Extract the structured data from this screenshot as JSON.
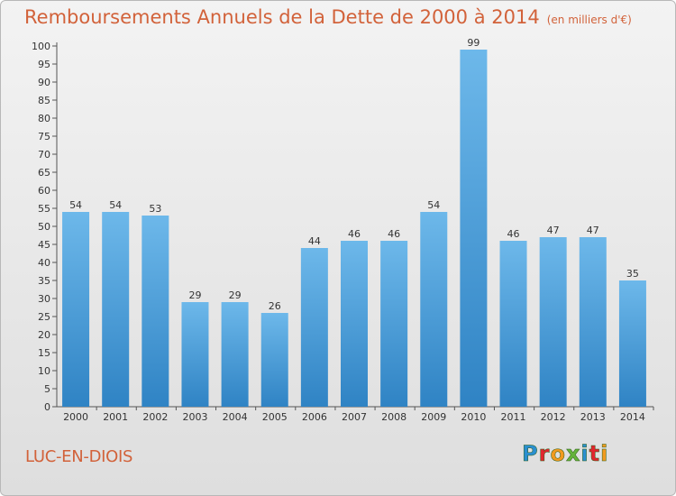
{
  "title": "Remboursements Annuels de la Dette de 2000 à 2014",
  "unit_note": "(en milliers d'€)",
  "commune": "LUC-EN-DIOIS",
  "logo": {
    "letters": [
      "P",
      "r",
      "o",
      "x",
      "i",
      "t",
      "i"
    ],
    "colors": [
      "#2b8fd0",
      "#e2262f",
      "#f29a1f",
      "#65b33b",
      "#2b8fd0",
      "#e2262f",
      "#f29a1f"
    ]
  },
  "colors": {
    "bar_light": "#6db8ea",
    "bar_dark": "#2f83c4",
    "title": "#d2623a"
  },
  "chart_data": {
    "type": "bar",
    "title": "Remboursements Annuels de la Dette de 2000 à 2014",
    "subtitle": "(en milliers d'€)",
    "categories": [
      "2000",
      "2001",
      "2002",
      "2003",
      "2004",
      "2005",
      "2006",
      "2007",
      "2008",
      "2009",
      "2010",
      "2011",
      "2012",
      "2013",
      "2014"
    ],
    "values": [
      54,
      54,
      53,
      29,
      29,
      26,
      44,
      46,
      46,
      54,
      99,
      46,
      47,
      47,
      35
    ],
    "ylim": [
      0,
      100
    ],
    "ytick_step": 5,
    "grid": false,
    "legend": "none"
  }
}
